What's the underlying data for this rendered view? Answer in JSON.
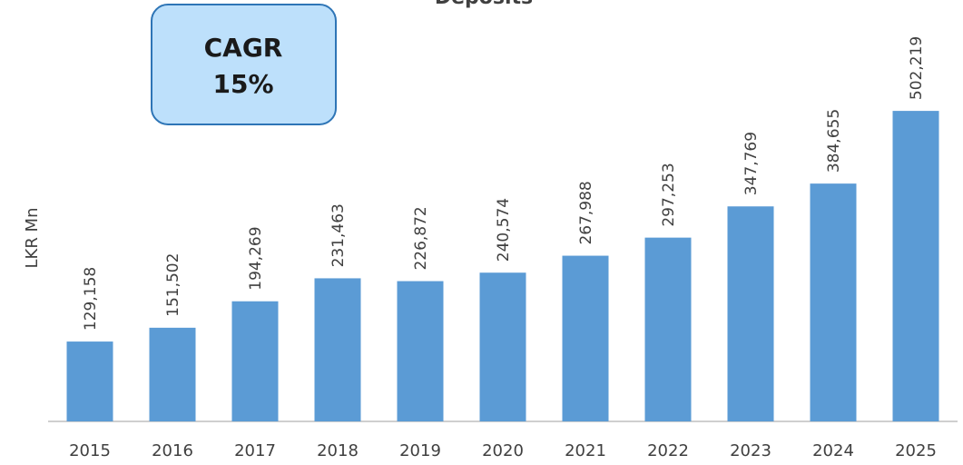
{
  "chart_data": {
    "type": "bar",
    "title": "Deposits",
    "ylabel": "LKR Mn",
    "annotation": [
      "CAGR",
      "15%"
    ],
    "categories": [
      "2015",
      "2016",
      "2017",
      "2018",
      "2019",
      "2020",
      "2021",
      "2022",
      "2023",
      "2024",
      "2025"
    ],
    "values": [
      129158,
      151502,
      194269,
      231463,
      226872,
      240574,
      267988,
      297253,
      347769,
      384655,
      502219
    ],
    "value_labels": [
      "129,158",
      "151,502",
      "194,269",
      "231,463",
      "226,872",
      "240,574",
      "267,988",
      "297,253",
      "347,769",
      "384,655",
      "502,219"
    ],
    "color": "#5b9bd5",
    "ylim": [
      0,
      520000
    ]
  }
}
